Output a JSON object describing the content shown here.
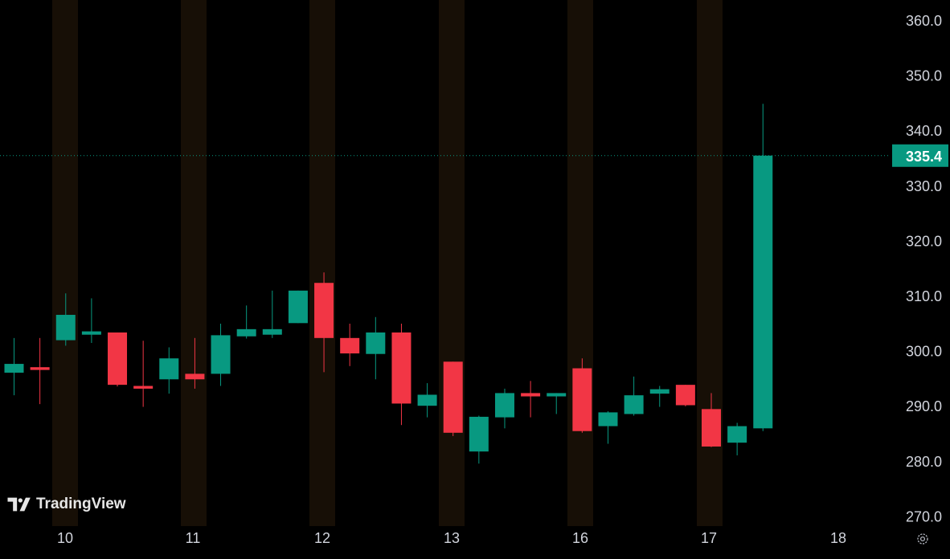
{
  "chart_data": {
    "type": "candlestick",
    "title": "",
    "xlabel": "",
    "ylabel": "",
    "ylim": [
      268.5,
      363
    ],
    "y_ticks": [
      "360.0",
      "350.0",
      "340.0",
      "330.0",
      "320.0",
      "310.0",
      "300.0",
      "290.0",
      "280.0",
      "270.0"
    ],
    "y_tick_values": [
      360,
      350,
      340,
      330,
      320,
      310,
      300,
      290,
      280,
      270
    ],
    "x_tick_labels": [
      "10",
      "11",
      "12",
      "13",
      "16",
      "17",
      "18"
    ],
    "last_price": "335.4",
    "last_price_value": 335.4,
    "grid": false,
    "candles": [
      {
        "o": 296.0,
        "h": 302.3,
        "l": 291.9,
        "c": 297.6
      },
      {
        "o": 297.0,
        "h": 302.3,
        "l": 290.3,
        "c": 296.5
      },
      {
        "o": 301.9,
        "h": 310.4,
        "l": 300.9,
        "c": 306.5
      },
      {
        "o": 302.9,
        "h": 309.5,
        "l": 301.4,
        "c": 303.5
      },
      {
        "o": 303.3,
        "h": 303.3,
        "l": 293.5,
        "c": 293.8
      },
      {
        "o": 293.6,
        "h": 301.8,
        "l": 289.8,
        "c": 293.1
      },
      {
        "o": 294.8,
        "h": 300.6,
        "l": 292.2,
        "c": 298.6
      },
      {
        "o": 295.8,
        "h": 302.3,
        "l": 293.1,
        "c": 294.8
      },
      {
        "o": 295.8,
        "h": 304.9,
        "l": 293.6,
        "c": 302.8
      },
      {
        "o": 302.6,
        "h": 308.2,
        "l": 302.2,
        "c": 303.9
      },
      {
        "o": 302.9,
        "h": 310.9,
        "l": 302.3,
        "c": 303.9
      },
      {
        "o": 305.0,
        "h": 310.9,
        "l": 305.0,
        "c": 310.9
      },
      {
        "o": 312.3,
        "h": 314.2,
        "l": 296.1,
        "c": 302.3
      },
      {
        "o": 302.3,
        "h": 304.9,
        "l": 297.2,
        "c": 299.5
      },
      {
        "o": 299.4,
        "h": 306.1,
        "l": 294.8,
        "c": 303.3
      },
      {
        "o": 303.3,
        "h": 304.9,
        "l": 286.5,
        "c": 290.4
      },
      {
        "o": 290.0,
        "h": 294.1,
        "l": 287.9,
        "c": 292.0
      },
      {
        "o": 298.0,
        "h": 298.0,
        "l": 284.5,
        "c": 285.1
      },
      {
        "o": 281.7,
        "h": 288.2,
        "l": 279.5,
        "c": 288.0
      },
      {
        "o": 287.9,
        "h": 293.1,
        "l": 285.9,
        "c": 292.3
      },
      {
        "o": 292.3,
        "h": 294.5,
        "l": 287.9,
        "c": 291.7
      },
      {
        "o": 291.7,
        "h": 292.3,
        "l": 288.5,
        "c": 292.3
      },
      {
        "o": 296.8,
        "h": 298.6,
        "l": 285.1,
        "c": 285.4
      },
      {
        "o": 286.3,
        "h": 289.0,
        "l": 283.1,
        "c": 288.8
      },
      {
        "o": 288.5,
        "h": 295.3,
        "l": 288.2,
        "c": 291.9
      },
      {
        "o": 292.2,
        "h": 293.6,
        "l": 289.8,
        "c": 293.0
      },
      {
        "o": 293.8,
        "h": 293.8,
        "l": 289.9,
        "c": 290.1
      },
      {
        "o": 289.4,
        "h": 292.3,
        "l": 282.5,
        "c": 282.6
      },
      {
        "o": 283.3,
        "h": 286.9,
        "l": 281.0,
        "c": 286.3
      },
      {
        "o": 285.9,
        "h": 344.8,
        "l": 285.4,
        "c": 335.4
      }
    ],
    "colors": {
      "up": "#089981",
      "down": "#f23645",
      "session_band": "#170f06",
      "axis_text": "#d1d4dc",
      "price_line": "#089981"
    }
  },
  "watermark": {
    "text": "TradingView"
  },
  "icons": {
    "settings": "settings-gear-icon",
    "logo": "tradingview-logo-icon"
  }
}
